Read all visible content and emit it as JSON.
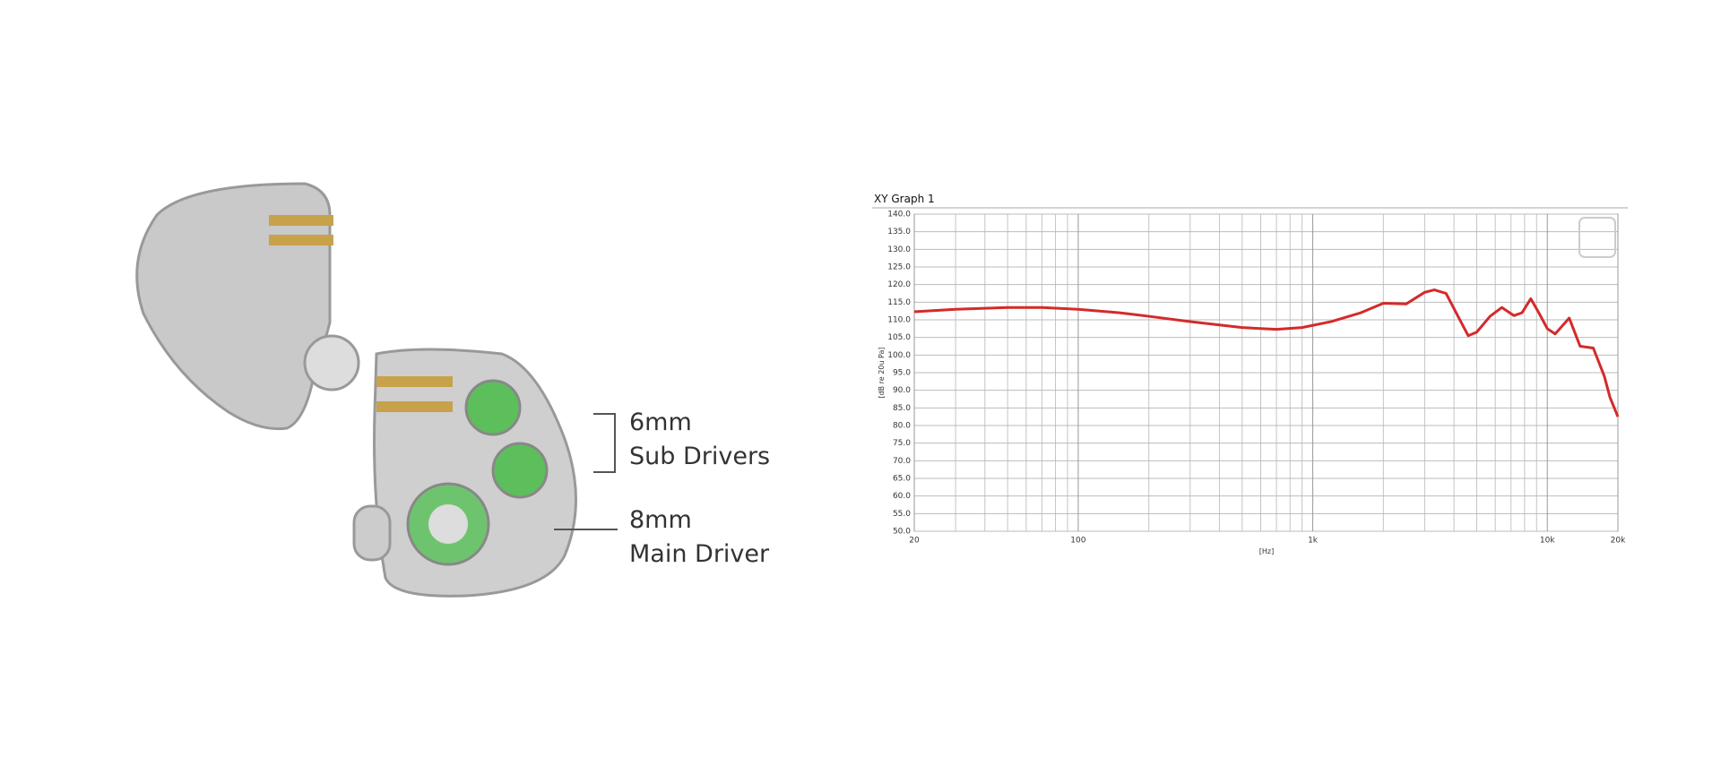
{
  "illustration": {
    "labels": [
      "6mm",
      "Sub Drivers",
      "8mm",
      "Main Driver"
    ]
  },
  "chart_data": {
    "type": "line",
    "title": "XY Graph 1",
    "x_label": "[Hz]",
    "y_label": "[dB re 20u Pa]",
    "x_scale": "log",
    "grid": true,
    "minor_grid": true,
    "xlim": [
      20,
      20000
    ],
    "xticks": [
      20,
      100,
      {
        "value": 1000,
        "label": "1k"
      },
      {
        "value": 10000,
        "label": "10k"
      },
      {
        "value": 20000,
        "label": "20k"
      }
    ],
    "ylim": [
      50,
      140
    ],
    "yticks": [
      {
        "value": 50,
        "label": "50.0"
      },
      {
        "value": 55,
        "label": "55.0"
      },
      {
        "value": 60,
        "label": "60.0"
      },
      {
        "value": 65,
        "label": "65.0"
      },
      {
        "value": 70,
        "label": "70.0"
      },
      {
        "value": 75,
        "label": "75.0"
      },
      {
        "value": 80,
        "label": "80.0"
      },
      {
        "value": 85,
        "label": "85.0"
      },
      {
        "value": 90,
        "label": "90.0"
      },
      {
        "value": 95,
        "label": "95.0"
      },
      {
        "value": 100,
        "label": "100.0"
      },
      {
        "value": 105,
        "label": "105.0"
      },
      {
        "value": 110,
        "label": "110.0"
      },
      {
        "value": 115,
        "label": "115.0"
      },
      {
        "value": 120,
        "label": "120.0"
      },
      {
        "value": 125,
        "label": "125.0"
      },
      {
        "value": 130,
        "label": "130.0"
      },
      {
        "value": 135,
        "label": "135.0"
      },
      {
        "value": 140,
        "label": "140.0"
      }
    ],
    "x": [
      20,
      30,
      50,
      70,
      100,
      150,
      200,
      300,
      500,
      700,
      900,
      1200,
      1600,
      2000,
      2500,
      3000,
      3300,
      3700,
      4200,
      4600,
      5000,
      5700,
      6400,
      7200,
      7800,
      8500,
      9200,
      10000,
      10800,
      12400,
      13800,
      15700,
      17500,
      18500,
      20000
    ],
    "series": [
      {
        "color": "#d42a2a",
        "values": [
          112.3,
          113,
          113.5,
          113.5,
          113,
          112,
          111,
          109.5,
          107.8,
          107.3,
          107.8,
          109.5,
          112,
          114.7,
          114.5,
          117.8,
          118.5,
          117.5,
          110.5,
          105.5,
          106.5,
          111,
          113.5,
          111.2,
          112,
          116,
          112,
          107.5,
          106,
          110.5,
          102.5,
          102,
          94,
          88,
          82.5
        ]
      }
    ]
  }
}
